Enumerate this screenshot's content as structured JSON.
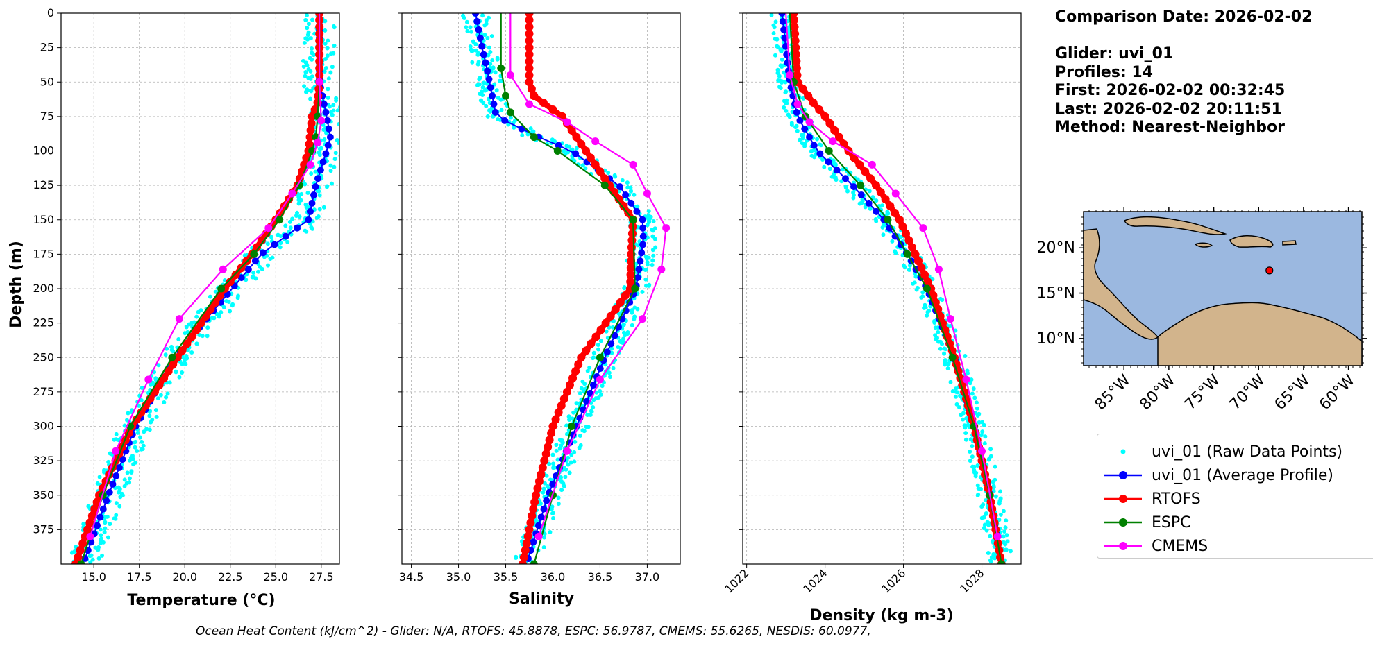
{
  "chart_data": [
    {
      "type": "line",
      "panel": "temperature",
      "xlabel": "Temperature (°C)",
      "ylabel": "Depth (m)",
      "xlim": [
        13.2,
        28.5
      ],
      "ylim": [
        400,
        0
      ],
      "grid": true,
      "x_ticks": [
        "15.0",
        "17.5",
        "20.0",
        "22.5",
        "25.0",
        "27.5"
      ],
      "y_ticks": [
        "0",
        "25",
        "50",
        "75",
        "100",
        "125",
        "150",
        "175",
        "200",
        "225",
        "250",
        "275",
        "300",
        "325",
        "350",
        "375"
      ],
      "series": [
        {
          "name": "uvi_01 (Average Profile)",
          "depth": [
            0,
            50,
            75,
            90,
            100,
            125,
            150,
            175,
            200,
            225,
            250,
            300,
            350,
            400
          ],
          "values": [
            27.4,
            27.4,
            27.8,
            28.0,
            27.8,
            27.2,
            26.8,
            24.2,
            22.6,
            21.0,
            19.5,
            17.3,
            15.8,
            14.4
          ]
        },
        {
          "name": "RTOFS",
          "depth": [
            0,
            50,
            65,
            75,
            100,
            125,
            150,
            175,
            200,
            250,
            300,
            350,
            400
          ],
          "values": [
            27.4,
            27.4,
            27.3,
            27.0,
            26.8,
            26.2,
            25.0,
            23.7,
            22.2,
            19.6,
            17.1,
            15.3,
            14.0
          ]
        },
        {
          "name": "ESPC",
          "depth": [
            0,
            50,
            75,
            90,
            100,
            125,
            150,
            175,
            200,
            250,
            300,
            350,
            400
          ],
          "values": [
            27.4,
            27.4,
            27.3,
            27.2,
            27.0,
            26.3,
            25.2,
            23.8,
            22.0,
            19.3,
            17.0,
            15.5,
            14.3
          ]
        },
        {
          "name": "CMEMS",
          "depth": [
            0,
            50,
            78,
            94,
            110,
            131,
            156,
            186,
            222,
            266,
            318,
            380
          ],
          "values": [
            27.4,
            27.4,
            27.5,
            27.3,
            26.9,
            25.9,
            24.6,
            22.1,
            19.7,
            18.0,
            16.2,
            14.8
          ]
        }
      ],
      "raw_series": {
        "name": "uvi_01 (Raw Data Points)",
        "spread": 0.9
      }
    },
    {
      "type": "line",
      "panel": "salinity",
      "xlabel": "Salinity",
      "xlim": [
        34.4,
        37.35
      ],
      "ylim": [
        400,
        0
      ],
      "grid": true,
      "x_ticks": [
        "34.5",
        "35.0",
        "35.5",
        "36.0",
        "36.5",
        "37.0"
      ],
      "series": [
        {
          "name": "uvi_01 (Average Profile)",
          "depth": [
            0,
            25,
            40,
            75,
            90,
            100,
            125,
            150,
            165,
            200,
            250,
            300,
            350,
            400
          ],
          "values": [
            35.18,
            35.25,
            35.3,
            35.4,
            35.85,
            36.2,
            36.7,
            36.95,
            36.96,
            36.88,
            36.55,
            36.25,
            35.95,
            35.72
          ]
        },
        {
          "name": "RTOFS",
          "depth": [
            0,
            50,
            60,
            75,
            100,
            125,
            150,
            175,
            200,
            250,
            300,
            350,
            400
          ],
          "values": [
            35.75,
            35.75,
            35.8,
            36.1,
            36.35,
            36.6,
            36.85,
            36.83,
            36.82,
            36.3,
            36.0,
            35.82,
            35.68
          ]
        },
        {
          "name": "ESPC",
          "depth": [
            0,
            40,
            60,
            72,
            90,
            100,
            125,
            150,
            200,
            250,
            300,
            350,
            400
          ],
          "values": [
            35.45,
            35.45,
            35.5,
            35.55,
            35.8,
            36.05,
            36.55,
            36.85,
            36.87,
            36.5,
            36.2,
            36.0,
            35.8
          ]
        },
        {
          "name": "CMEMS",
          "depth": [
            0,
            45,
            66,
            79,
            93,
            110,
            131,
            156,
            186,
            222,
            266,
            318,
            380
          ],
          "values": [
            35.55,
            35.55,
            35.75,
            36.15,
            36.45,
            36.85,
            37.0,
            37.2,
            37.15,
            36.95,
            36.5,
            36.15,
            35.85
          ]
        }
      ],
      "raw_series": {
        "name": "uvi_01 (Raw Data Points)",
        "spread": 0.14
      }
    },
    {
      "type": "line",
      "panel": "density",
      "xlabel": "Density (kg m-3)",
      "xlim": [
        1021.9,
        1029.0
      ],
      "ylim": [
        400,
        0
      ],
      "grid": true,
      "x_ticks": [
        "1022",
        "1024",
        "1026",
        "1028"
      ],
      "series": [
        {
          "name": "uvi_01 (Average Profile)",
          "depth": [
            0,
            50,
            75,
            100,
            125,
            150,
            175,
            200,
            250,
            300,
            350,
            400
          ],
          "values": [
            1022.9,
            1023.1,
            1023.3,
            1023.8,
            1024.7,
            1025.5,
            1026.1,
            1026.6,
            1027.3,
            1027.8,
            1028.2,
            1028.5
          ]
        },
        {
          "name": "RTOFS",
          "depth": [
            0,
            50,
            65,
            75,
            100,
            125,
            150,
            175,
            200,
            250,
            300,
            350,
            400
          ],
          "values": [
            1023.2,
            1023.3,
            1023.7,
            1024.0,
            1024.6,
            1025.3,
            1025.9,
            1026.3,
            1026.7,
            1027.3,
            1027.8,
            1028.2,
            1028.5
          ]
        },
        {
          "name": "ESPC",
          "depth": [
            0,
            50,
            75,
            100,
            125,
            150,
            175,
            200,
            250,
            300,
            350,
            400
          ],
          "values": [
            1023.1,
            1023.2,
            1023.5,
            1024.1,
            1024.9,
            1025.6,
            1026.1,
            1026.6,
            1027.25,
            1027.8,
            1028.2,
            1028.5
          ]
        },
        {
          "name": "CMEMS",
          "depth": [
            0,
            45,
            66,
            79,
            93,
            110,
            131,
            156,
            186,
            222,
            266,
            318,
            380
          ],
          "values": [
            1023.0,
            1023.1,
            1023.3,
            1023.6,
            1024.2,
            1025.2,
            1025.8,
            1026.5,
            1026.9,
            1027.2,
            1027.6,
            1028.0,
            1028.4
          ]
        }
      ],
      "raw_series": {
        "name": "uvi_01 (Raw Data Points)",
        "spread": 0.3
      }
    }
  ],
  "colors": {
    "raw": "#00ffff",
    "average": "#0000ff",
    "rtofs": "#ff0000",
    "espc": "#008000",
    "cmems": "#ff00ff",
    "ocean": "#9bb8e0",
    "land": "#d2b48c"
  },
  "info": {
    "comparison_date": "Comparison Date: 2026-02-02",
    "glider": "Glider: uvi_01",
    "profiles": "Profiles: 14",
    "first": "First: 2026-02-02 00:32:45",
    "last": "Last: 2026-02-02 20:11:51",
    "method": "Method: Nearest-Neighbor"
  },
  "map": {
    "lat_labels": [
      "20°N",
      "15°N",
      "10°N"
    ],
    "lon_labels": [
      "85°W",
      "80°W",
      "75°W",
      "70°W",
      "65°W",
      "60°W"
    ],
    "marker": {
      "lat": 17.5,
      "lon": -68.8
    }
  },
  "legend": {
    "items": [
      {
        "key": "raw",
        "label": "uvi_01 (Raw Data Points)"
      },
      {
        "key": "average",
        "label": "uvi_01 (Average Profile)"
      },
      {
        "key": "rtofs",
        "label": "RTOFS"
      },
      {
        "key": "espc",
        "label": "ESPC"
      },
      {
        "key": "cmems",
        "label": "CMEMS"
      }
    ]
  },
  "footer": {
    "text": "Ocean Heat Content (kJ/cm^2) - Glider: N/A,  RTOFS: 45.8878,  ESPC: 56.9787,  CMEMS: 55.6265,  NESDIS: 60.0977,"
  }
}
